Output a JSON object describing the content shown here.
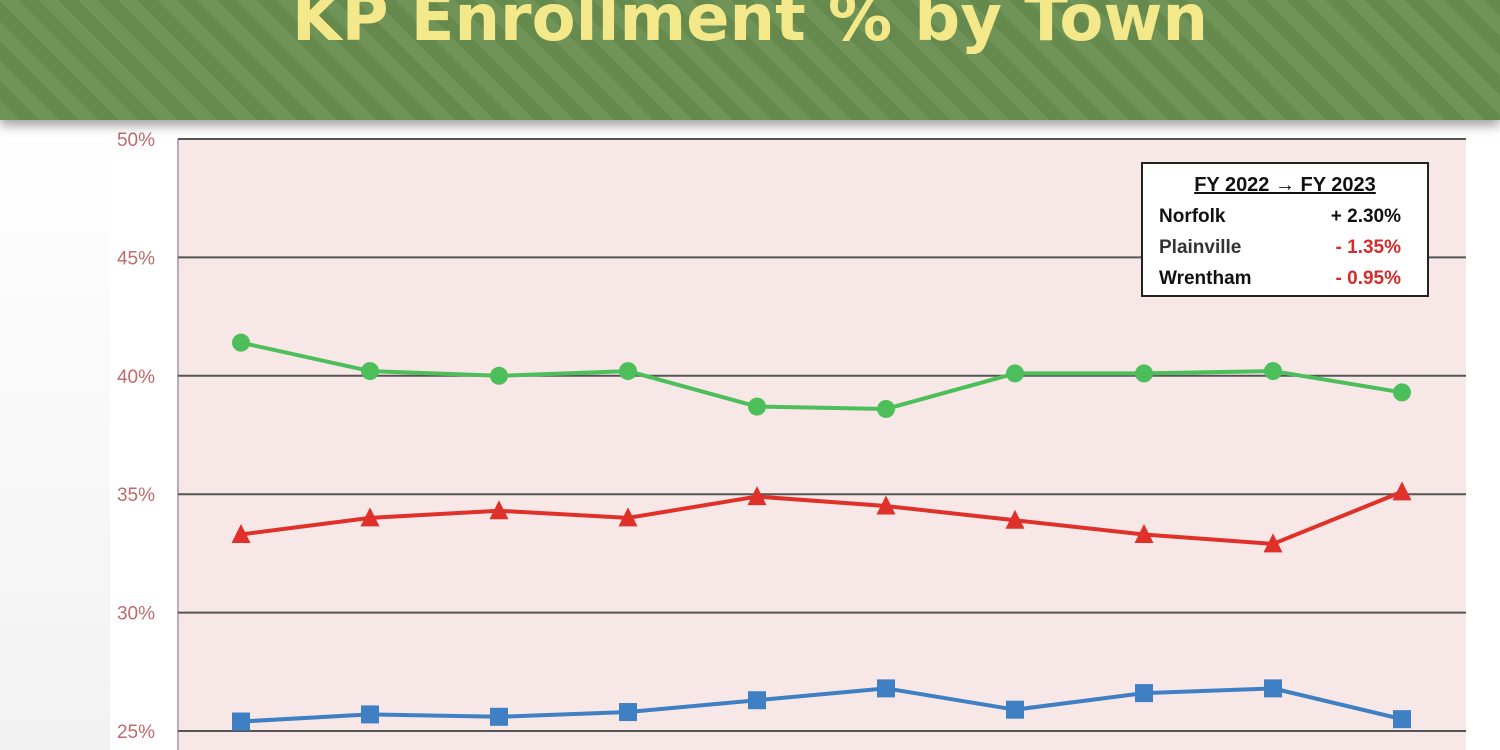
{
  "header": {
    "title": "KP Enrollment % by Town"
  },
  "legend": {
    "heading": "FY 2022 → FY 2023",
    "rows": [
      {
        "town": "Norfolk",
        "change": "+ 2.30%",
        "color": "#111111"
      },
      {
        "town": "Plainville",
        "change": "- 1.35%",
        "color": "#d62b2b"
      },
      {
        "town": "Wrentham",
        "change": "- 0.95%",
        "color": "#d62b2b"
      }
    ]
  },
  "chart_data": {
    "type": "line",
    "title": "KP Enrollment % by Town",
    "xlabel": "",
    "ylabel": "",
    "ylim": [
      25,
      50
    ],
    "yticks": [
      "25%",
      "30%",
      "35%",
      "40%",
      "45%",
      "50%"
    ],
    "grid": true,
    "x": [
      1,
      2,
      3,
      4,
      5,
      6,
      7,
      8,
      9,
      10
    ],
    "series": [
      {
        "marker": "circle",
        "color": "#4cbf5a",
        "values": [
          41.4,
          40.2,
          40.0,
          40.2,
          38.7,
          38.6,
          40.1,
          40.1,
          40.2,
          39.3
        ]
      },
      {
        "marker": "triangle",
        "color": "#e0302a",
        "values": [
          33.3,
          34.0,
          34.3,
          34.0,
          34.9,
          34.5,
          33.9,
          33.3,
          32.9,
          35.1
        ]
      },
      {
        "marker": "square",
        "color": "#3f7fc4",
        "values": [
          25.4,
          25.7,
          25.6,
          25.8,
          26.3,
          26.8,
          25.9,
          26.6,
          26.8,
          25.5
        ]
      }
    ],
    "legend_placement": "top-right"
  },
  "colors": {
    "banner": "#6a8f50",
    "title": "#f3e98a",
    "plot_bg": "#f7e7e7",
    "gridline": "#555555"
  }
}
